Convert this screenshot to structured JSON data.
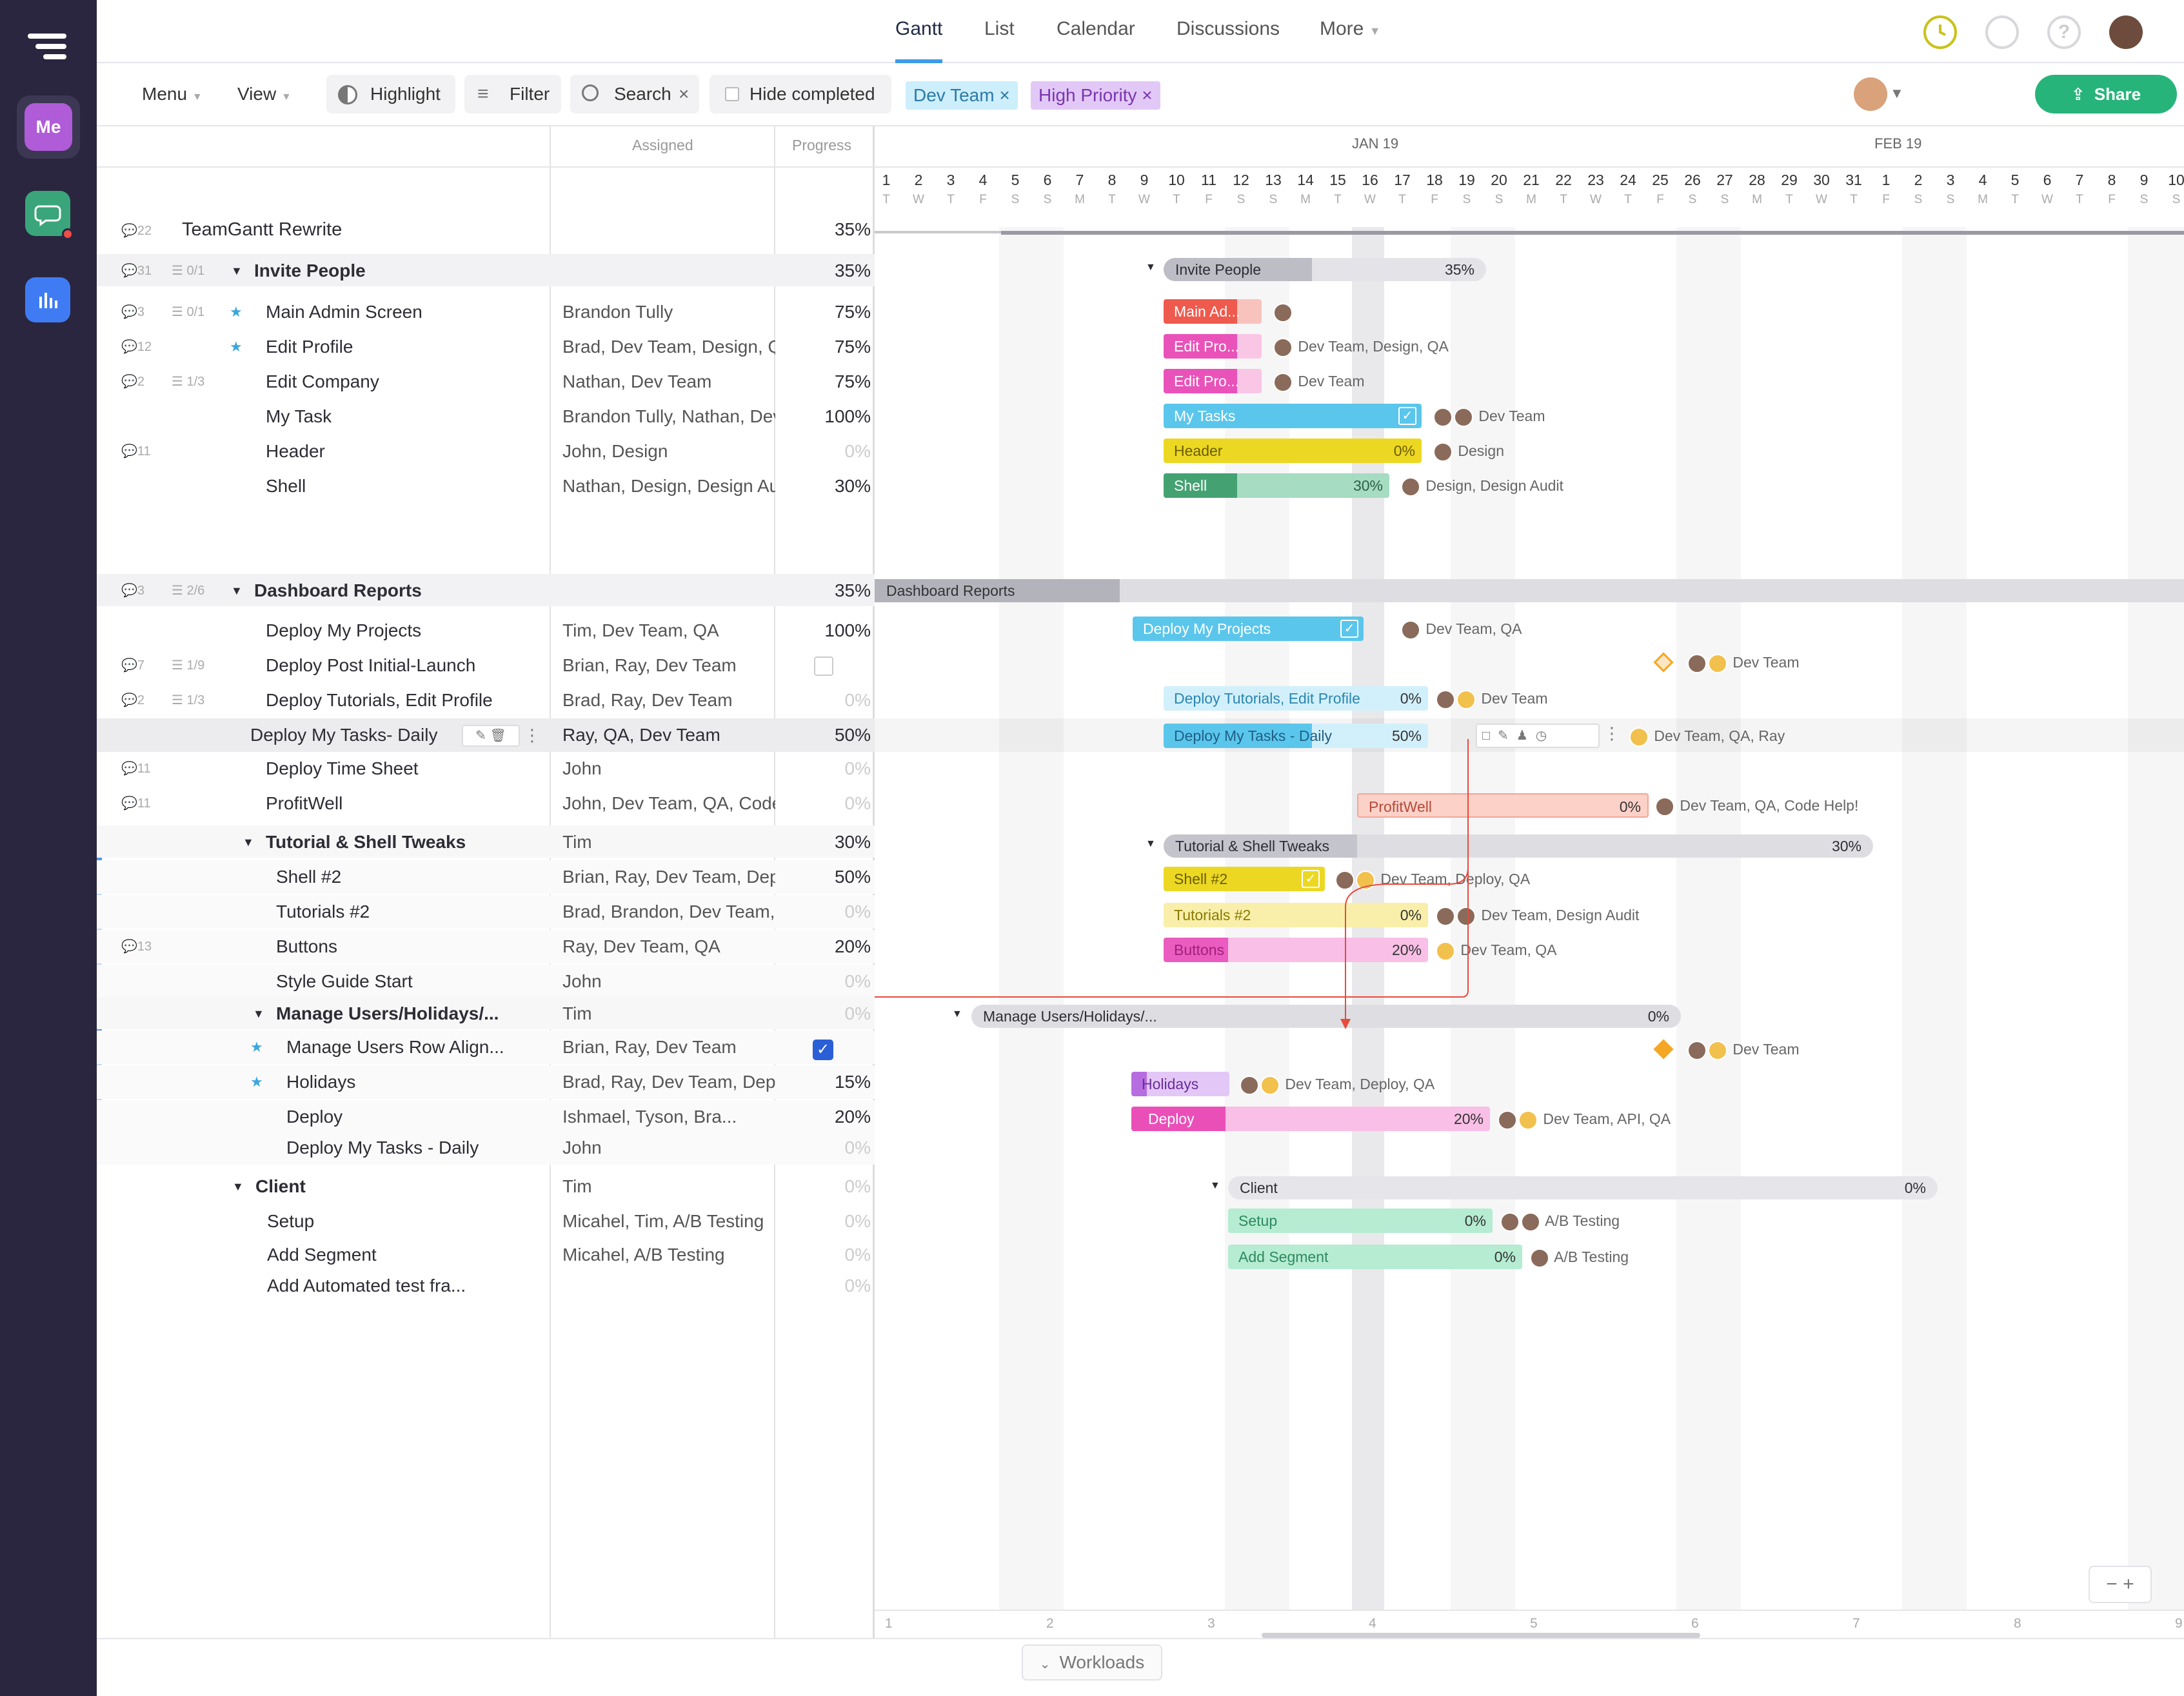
{
  "sidebar": {
    "me_label": "Me"
  },
  "nav": {
    "tabs": [
      {
        "label": "Gantt",
        "active": true
      },
      {
        "label": "List"
      },
      {
        "label": "Calendar"
      },
      {
        "label": "Discussions"
      },
      {
        "label": "More"
      }
    ]
  },
  "toolbar": {
    "menu": "Menu",
    "view": "View",
    "highlight": "Highlight",
    "filter": "Filter",
    "search": "Search",
    "hide_completed": "Hide completed",
    "chips": [
      "Dev Team",
      "High Priority"
    ],
    "share": "Share"
  },
  "columns": {
    "assigned": "Assigned",
    "progress": "Progress"
  },
  "project": {
    "name": "TeamGantt Rewrite",
    "comments": "22",
    "progress": "35%"
  },
  "rows": [
    {
      "name": "Invite People",
      "group": true,
      "comments": "31",
      "checks": "0/1",
      "progress": "35%"
    },
    {
      "name": "Main Admin Screen",
      "star": true,
      "comments": "3",
      "checks": "0/1",
      "assigned": "Brandon Tully",
      "progress": "75%"
    },
    {
      "name": "Edit Profile",
      "star": true,
      "comments": "12",
      "assigned": "Brad, Dev Team, Design, QA",
      "progress": "75%"
    },
    {
      "name": "Edit Company",
      "comments": "2",
      "checks": "1/3",
      "assigned": "Nathan, Dev Team",
      "progress": "75%"
    },
    {
      "name": "My Task",
      "assigned": "Brandon Tully, Nathan, Dev Team",
      "progress": "100%"
    },
    {
      "name": "Header",
      "comments": "11",
      "assigned": "John, Design",
      "progress": "0%"
    },
    {
      "name": "Shell",
      "assigned": "Nathan, Design, Design Audit",
      "progress": "30%"
    },
    {
      "name": "Dashboard Reports",
      "group": true,
      "comments": "3",
      "checks": "2/6",
      "progress": "35%"
    },
    {
      "name": "Deploy My Projects",
      "assigned": "Tim, Dev Team, QA",
      "progress": "100%"
    },
    {
      "name": "Deploy Post Initial-Launch",
      "comments": "7",
      "checks": "1/9",
      "assigned": "Brian, Ray, Dev Team",
      "progress": ""
    },
    {
      "name": "Deploy Tutorials, Edit Profile",
      "comments": "2",
      "checks": "1/3",
      "assigned": "Brad, Ray, Dev Team",
      "progress": "0%"
    },
    {
      "name": "Deploy My Tasks- Daily",
      "assigned": "Ray, QA, Dev Team",
      "progress": "50%"
    },
    {
      "name": "Deploy Time Sheet",
      "comments": "11",
      "assigned": "John",
      "progress": "0%"
    },
    {
      "name": "ProfitWell",
      "comments": "11",
      "assigned": "John, Dev Team, QA, Code Help!",
      "progress": "0%"
    },
    {
      "name": "Tutorial & Shell Tweaks",
      "group": true,
      "assigned": "Tim",
      "progress": "30%"
    },
    {
      "name": "Shell #2",
      "assigned": "Brian, Ray, Dev Team, Deploy, QA",
      "progress": "50%"
    },
    {
      "name": "Tutorials #2",
      "assigned": "Brad, Brandon, Dev Team, Design Audit",
      "progress": "0%"
    },
    {
      "name": "Buttons",
      "comments": "13",
      "assigned": "Ray, Dev Team, QA",
      "progress": "20%"
    },
    {
      "name": "Style Guide Start",
      "assigned": "John",
      "progress": "0%"
    },
    {
      "name": "Manage Users/Holidays/...",
      "group": true,
      "assigned": "Tim",
      "progress": "0%"
    },
    {
      "name": "Manage Users Row Align...",
      "star": true,
      "assigned": "Brian, Ray, Dev Team",
      "progress": ""
    },
    {
      "name": "Holidays",
      "star": true,
      "assigned": "Brad, Ray, Dev Team, Deploy, QA",
      "progress": "15%"
    },
    {
      "name": "Deploy",
      "assigned": "Ishmael, Tyson, Bra...",
      "progress": "20%"
    },
    {
      "name": "Deploy My Tasks - Daily",
      "assigned": "John",
      "progress": "0%"
    },
    {
      "name": "Client",
      "group": true,
      "assigned": "Tim",
      "progress": "0%"
    },
    {
      "name": "Setup",
      "assigned": "Micahel, Tim, A/B Testing",
      "progress": "0%"
    },
    {
      "name": "Add Segment",
      "assigned": "Micahel, A/B Testing",
      "progress": "0%"
    },
    {
      "name": "Add Automated test fra...",
      "assigned": "",
      "progress": "0%"
    }
  ],
  "timeline": {
    "months": [
      "JAN 19",
      "FEB 19"
    ],
    "days": [
      "1",
      "2",
      "3",
      "4",
      "5",
      "6",
      "7",
      "8",
      "9",
      "10",
      "11",
      "12",
      "13",
      "14",
      "15",
      "16",
      "17",
      "18",
      "19",
      "20",
      "21",
      "22",
      "23",
      "24",
      "25",
      "26",
      "27",
      "28",
      "29",
      "30",
      "31",
      "1",
      "2",
      "3",
      "4",
      "5",
      "6",
      "7",
      "8",
      "9",
      "10"
    ],
    "weekdays": [
      "T",
      "W",
      "T",
      "F",
      "S",
      "S",
      "M",
      "T",
      "W",
      "T",
      "F",
      "S",
      "S",
      "M",
      "T",
      "W",
      "T",
      "F",
      "S",
      "S",
      "M",
      "T",
      "W",
      "T",
      "F",
      "S",
      "S",
      "M",
      "T",
      "W",
      "T",
      "F",
      "S",
      "S",
      "M",
      "T",
      "W",
      "T",
      "F",
      "S",
      "S"
    ],
    "weeks": [
      "1",
      "2",
      "3",
      "4",
      "5",
      "6",
      "7",
      "8",
      "9"
    ]
  },
  "bars": {
    "invite_group": {
      "label": "Invite People",
      "pct": "35%"
    },
    "main_admin": {
      "label": "Main Ad..."
    },
    "edit_profile": {
      "label": "Edit Pro...",
      "ann": "Dev Team, Design, QA"
    },
    "edit_company": {
      "label": "Edit Pro...",
      "ann": "Dev Team"
    },
    "my_tasks": {
      "label": "My Tasks",
      "ann": "Dev Team"
    },
    "header": {
      "label": "Header",
      "pct": "0%",
      "ann": "Design"
    },
    "shell": {
      "label": "Shell",
      "pct": "30%",
      "ann": "Design, Design Audit"
    },
    "dash_group": {
      "label": "Dashboard Reports"
    },
    "deploy_projects": {
      "label": "Deploy My Projects",
      "ann": "Dev Team, QA"
    },
    "deploy_post": {
      "ann": "Dev Team"
    },
    "deploy_tut": {
      "label": "Deploy Tutorials, Edit Profile",
      "pct": "0%",
      "ann": "Dev Team"
    },
    "deploy_tasks": {
      "label": "Deploy My Tasks - Daily",
      "pct": "50%",
      "ann": "Dev Team, QA, Ray"
    },
    "profitwell": {
      "label": "ProfitWell",
      "pct": "0%",
      "ann": "Dev Team, QA, Code Help!"
    },
    "tut_group": {
      "label": "Tutorial & Shell Tweaks",
      "pct": "30%"
    },
    "shell2": {
      "label": "Shell #2",
      "ann": "Dev Team, Deploy, QA"
    },
    "tut2": {
      "label": "Tutorials #2",
      "pct": "0%",
      "ann": "Dev Team, Design Audit"
    },
    "buttons": {
      "label": "Buttons",
      "pct": "20%",
      "ann": "Dev Team, QA"
    },
    "manage_group": {
      "label": "Manage Users/Holidays/...",
      "pct": "0%"
    },
    "manage_row": {
      "ann": "Dev Team"
    },
    "holidays": {
      "label": "Holidays",
      "ann": "Dev Team, Deploy, QA"
    },
    "deploy": {
      "label": "Deploy",
      "pct": "20%",
      "ann": "Dev Team, API, QA"
    },
    "client_group": {
      "label": "Client",
      "pct": "0%"
    },
    "setup": {
      "label": "Setup",
      "pct": "0%",
      "ann": "A/B Testing"
    },
    "add_segment": {
      "label": "Add Segment",
      "pct": "0%",
      "ann": "A/B Testing"
    }
  },
  "bottom": {
    "workloads": "Workloads"
  }
}
